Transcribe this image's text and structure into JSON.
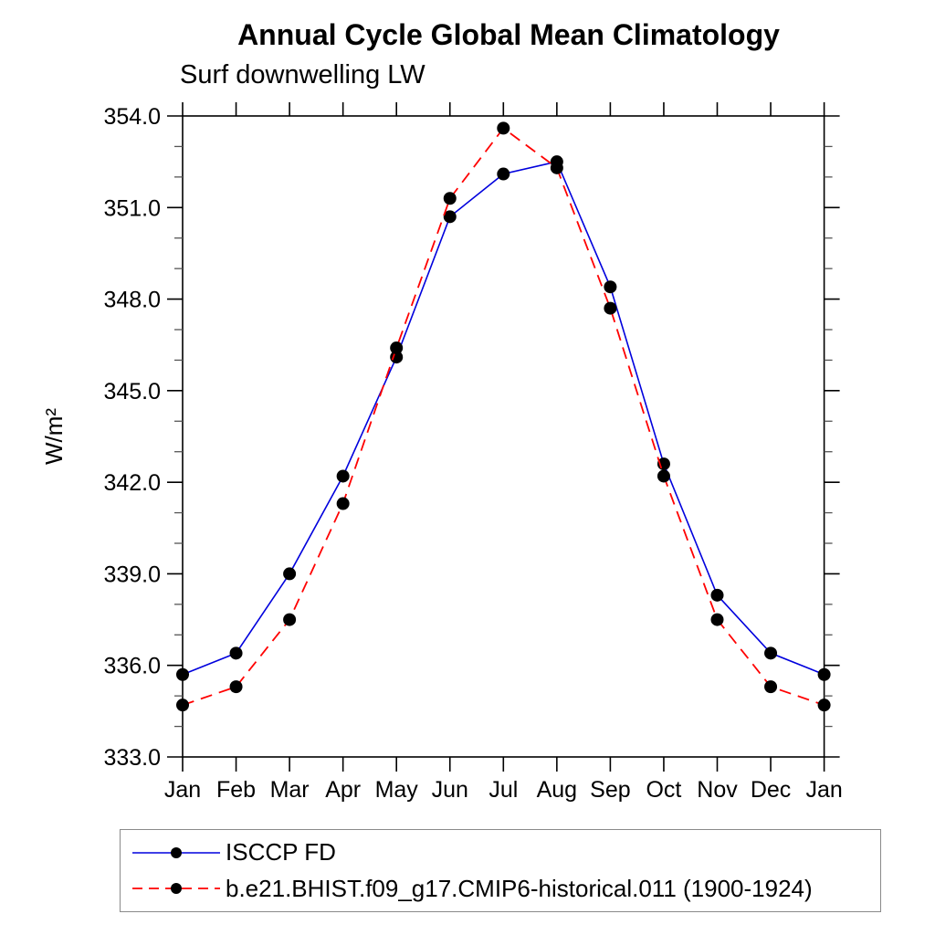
{
  "header": {
    "title": "Annual Cycle Global Mean Climatology",
    "subtitle": "Surf downwelling LW"
  },
  "chart_data": {
    "type": "line",
    "title": "Annual Cycle Global Mean Climatology",
    "subtitle": "Surf downwelling LW",
    "ylabel": "W/m²",
    "xlabel": "",
    "categories": [
      "Jan",
      "Feb",
      "Mar",
      "Apr",
      "May",
      "Jun",
      "Jul",
      "Aug",
      "Sep",
      "Oct",
      "Nov",
      "Dec",
      "Jan"
    ],
    "ylim": [
      333.0,
      354.0
    ],
    "ytick_major_step": 3.0,
    "ytick_minor_step": 1.0,
    "ytick_labels": [
      "333.0",
      "336.0",
      "339.0",
      "342.0",
      "345.0",
      "348.0",
      "351.0",
      "354.0"
    ],
    "grid": "off",
    "legend_position": "bottom",
    "marker": {
      "shape": "circle",
      "color": "#000000",
      "radius": 7
    },
    "series": [
      {
        "name": "ISCCP FD",
        "color": "#0000dd",
        "line_style": "solid",
        "values": [
          335.7,
          336.4,
          339.0,
          342.2,
          346.1,
          350.7,
          352.1,
          352.5,
          348.4,
          342.6,
          338.3,
          336.4,
          335.7
        ]
      },
      {
        "name": "b.e21.BHIST.f09_g17.CMIP6-historical.011 (1900-1924)",
        "color": "#ff0000",
        "line_style": "dashed",
        "values": [
          334.7,
          335.3,
          337.5,
          341.3,
          346.4,
          351.3,
          353.6,
          352.3,
          347.7,
          342.2,
          337.5,
          335.3,
          334.7
        ]
      }
    ]
  }
}
